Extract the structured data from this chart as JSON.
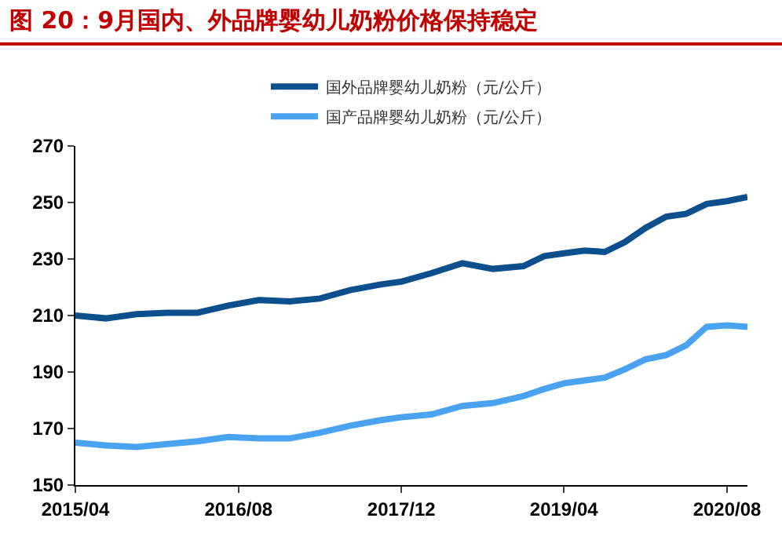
{
  "chart_data": {
    "type": "line",
    "title": "图 20：9月国内、外品牌婴幼儿奶粉价格保持稳定",
    "x": [
      "2015-04",
      "2015-07",
      "2015-10",
      "2016-01",
      "2016-04",
      "2016-07",
      "2016-10",
      "2017-01",
      "2017-04",
      "2017-07",
      "2017-10",
      "2017-12",
      "2018-03",
      "2018-06",
      "2018-09",
      "2018-12",
      "2019-02",
      "2019-04",
      "2019-06",
      "2019-08",
      "2019-10",
      "2019-12",
      "2020-02",
      "2020-04",
      "2020-06",
      "2020-08",
      "2020-10"
    ],
    "series": [
      {
        "name": "国外品牌婴幼儿奶粉（元/公斤）",
        "color": "#0b4f8c",
        "values": [
          210,
          209,
          210.5,
          211,
          211,
          213.5,
          215.5,
          215,
          216,
          219,
          221,
          222,
          225,
          228.5,
          226.5,
          227.5,
          231,
          232,
          233,
          232.5,
          236,
          241,
          245,
          246,
          249.5,
          250.5,
          252
        ]
      },
      {
        "name": "国产品牌婴幼儿奶粉（元/公斤）",
        "color": "#4aa3f0",
        "values": [
          165,
          164,
          163.5,
          164.5,
          165.5,
          167,
          166.5,
          166.5,
          168.5,
          171,
          173,
          174,
          175,
          178,
          179,
          181.5,
          184,
          186,
          187,
          188,
          191,
          194.5,
          196,
          199.5,
          206,
          206.5,
          206
        ]
      }
    ],
    "xlim": [
      "2015-04",
      "2020-10"
    ],
    "xticks": [
      {
        "value": "2015-04",
        "label": "2015/04"
      },
      {
        "value": "2016-08",
        "label": "2016/08"
      },
      {
        "value": "2017-12",
        "label": "2017/12"
      },
      {
        "value": "2019-04",
        "label": "2019/04"
      },
      {
        "value": "2020-08",
        "label": "2020/08"
      }
    ],
    "ylim": [
      150,
      270
    ],
    "yticks": [
      150,
      170,
      190,
      210,
      230,
      250,
      270
    ],
    "grid": false,
    "legend": "top",
    "marker": "none",
    "line_style": "solid"
  }
}
